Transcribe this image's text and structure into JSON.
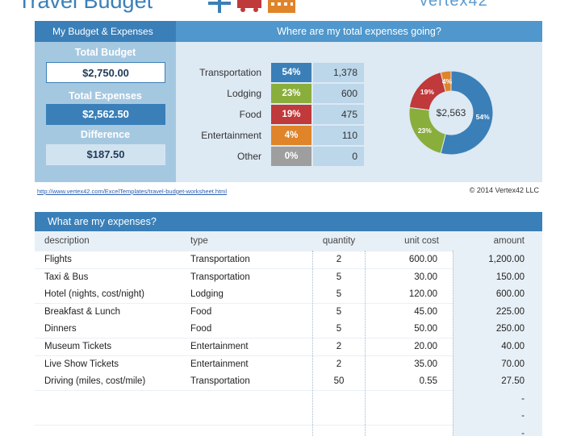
{
  "header": {
    "title": "Travel Budget",
    "brand": "vertex42"
  },
  "budget": {
    "heading": "My Budget & Expenses",
    "total_budget_label": "Total Budget",
    "total_budget_value": "$2,750.00",
    "total_expenses_label": "Total Expenses",
    "total_expenses_value": "$2,562.50",
    "difference_label": "Difference",
    "difference_value": "$187.50"
  },
  "summary": {
    "heading": "Where are my total expenses going?",
    "categories": [
      {
        "label": "Transportation",
        "pct": "54%",
        "amount": "1,378",
        "color": "#3a7fb8"
      },
      {
        "label": "Lodging",
        "pct": "23%",
        "amount": "600",
        "color": "#8aae3c"
      },
      {
        "label": "Food",
        "pct": "19%",
        "amount": "475",
        "color": "#c0393b"
      },
      {
        "label": "Entertainment",
        "pct": "4%",
        "amount": "110",
        "color": "#e0842a"
      },
      {
        "label": "Other",
        "pct": "0%",
        "amount": "0",
        "color": "#9e9e9e"
      }
    ],
    "donut_center": "$2,563"
  },
  "chart_data": {
    "type": "pie",
    "title": "",
    "categories": [
      "Transportation",
      "Lodging",
      "Food",
      "Entertainment"
    ],
    "values": [
      54,
      23,
      19,
      4
    ],
    "labels": [
      "54%",
      "23%",
      "19%",
      "4%"
    ],
    "center_label": "$2,563",
    "colors": [
      "#3a7fb8",
      "#8aae3c",
      "#c0393b",
      "#e0842a"
    ]
  },
  "links": {
    "url": "http://www.vertex42.com/ExcelTemplates/travel-budget-worksheet.html",
    "copyright": "© 2014 Vertex42 LLC"
  },
  "table": {
    "heading": "What are my expenses?",
    "columns": [
      "description",
      "type",
      "quantity",
      "unit cost",
      "amount"
    ],
    "rows": [
      {
        "description": "Flights",
        "type": "Transportation",
        "quantity": "2",
        "unit_cost": "600.00",
        "amount": "1,200.00"
      },
      {
        "description": "Taxi & Bus",
        "type": "Transportation",
        "quantity": "5",
        "unit_cost": "30.00",
        "amount": "150.00"
      },
      {
        "description": "Hotel (nights, cost/night)",
        "type": "Lodging",
        "quantity": "5",
        "unit_cost": "120.00",
        "amount": "600.00"
      },
      {
        "description": "Breakfast & Lunch",
        "type": "Food",
        "quantity": "5",
        "unit_cost": "45.00",
        "amount": "225.00"
      },
      {
        "description": "Dinners",
        "type": "Food",
        "quantity": "5",
        "unit_cost": "50.00",
        "amount": "250.00"
      },
      {
        "description": "Museum Tickets",
        "type": "Entertainment",
        "quantity": "2",
        "unit_cost": "20.00",
        "amount": "40.00"
      },
      {
        "description": "Live Show Tickets",
        "type": "Entertainment",
        "quantity": "2",
        "unit_cost": "35.00",
        "amount": "70.00"
      },
      {
        "description": "Driving (miles, cost/mile)",
        "type": "Transportation",
        "quantity": "50",
        "unit_cost": "0.55",
        "amount": "27.50"
      },
      {
        "description": "",
        "type": "",
        "quantity": "",
        "unit_cost": "",
        "amount": "-"
      },
      {
        "description": "",
        "type": "",
        "quantity": "",
        "unit_cost": "",
        "amount": "-"
      },
      {
        "description": "",
        "type": "",
        "quantity": "",
        "unit_cost": "",
        "amount": "-"
      }
    ]
  },
  "icons": [
    "airplane-icon",
    "car-icon",
    "building-icon"
  ]
}
